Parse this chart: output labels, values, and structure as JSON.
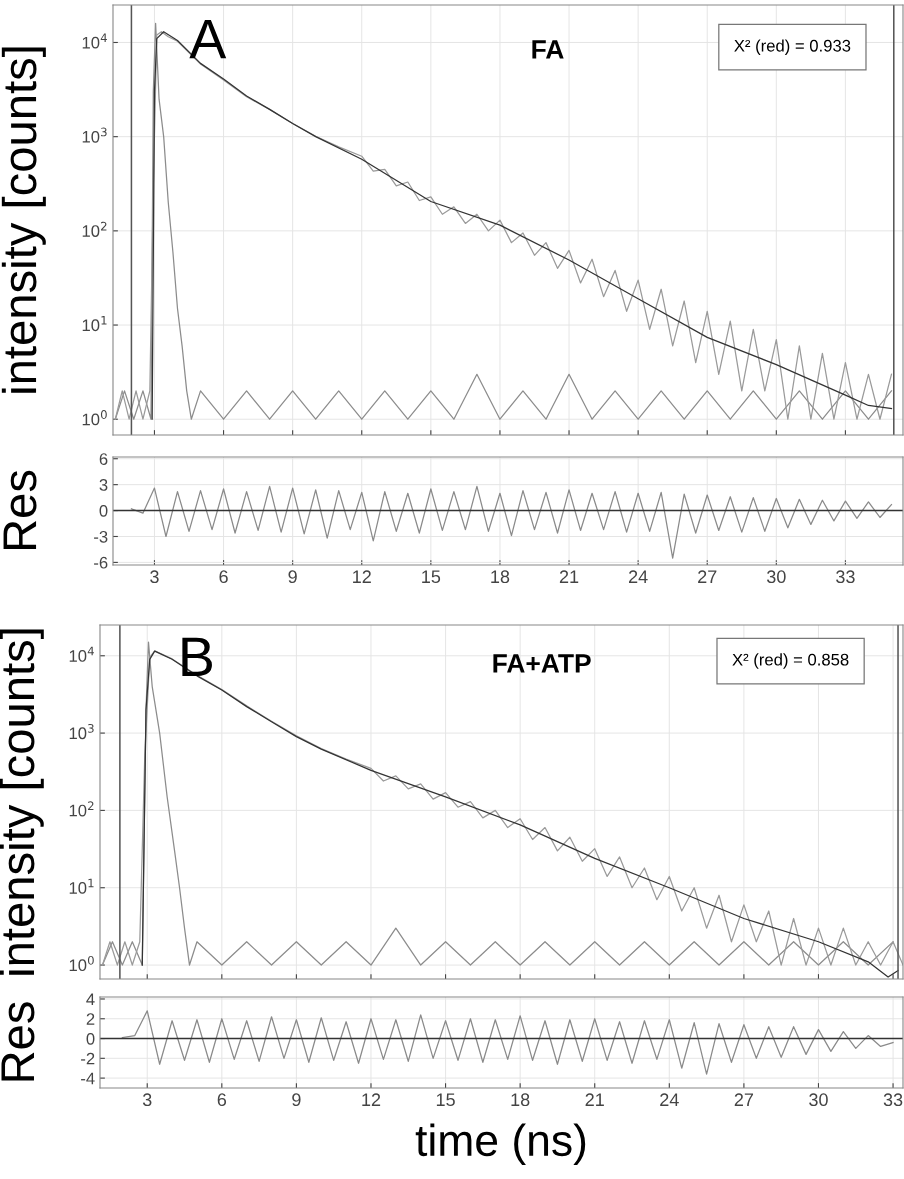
{
  "chart_data": [
    {
      "type": "line",
      "ylabel": "intensity [counts]",
      "annotations": [
        "A",
        "FA",
        "X² (red) = 0.933"
      ],
      "log": true,
      "grid": true,
      "tick_labels": "y",
      "xlim": [
        1.2,
        35.5
      ],
      "xticks": [
        3,
        6,
        9,
        12,
        15,
        18,
        21,
        24,
        27,
        30,
        33
      ],
      "ylim": [
        0.68,
        25000
      ],
      "yticks": [
        {
          "value": 1,
          "label": "10$^{0}$"
        },
        {
          "value": 10,
          "label": "10$^{1}$"
        },
        {
          "value": 100,
          "label": "10$^{2}$"
        },
        {
          "value": 1000,
          "label": "10$^{3}$"
        },
        {
          "value": 10000,
          "label": "10$^{4}$"
        }
      ],
      "ref_lines": [
        {
          "axis": "x",
          "value": 2.0,
          "color": "#555555"
        },
        {
          "axis": "x",
          "value": 35.1,
          "color": "#555555"
        }
      ],
      "series": [
        {
          "color": "#8c8c8c",
          "x": [
            1.3,
            1.7,
            2.1,
            2.5,
            2.85,
            2.95,
            3.05,
            3.2,
            3.4,
            3.6,
            3.8,
            4.0,
            4.2,
            4.4,
            4.6,
            5,
            6,
            7,
            8,
            9,
            10,
            11,
            12,
            13,
            14,
            15,
            16,
            17,
            18,
            19,
            20,
            21,
            22,
            23,
            24,
            25,
            26,
            27,
            28,
            29,
            30,
            31,
            32,
            33,
            34,
            35
          ],
          "values": [
            1,
            2,
            1,
            2,
            1,
            3000,
            16000,
            2500,
            1000,
            200,
            60,
            15,
            6,
            2,
            1,
            2,
            1,
            2,
            1,
            2,
            1,
            2,
            1,
            2,
            1,
            2,
            1,
            3,
            1,
            2,
            1,
            3,
            1,
            2,
            1,
            2,
            1,
            2,
            1,
            2,
            1,
            2,
            1,
            2,
            1,
            2
          ]
        },
        {
          "color": "#9a9a9a",
          "x": [
            1.3,
            1.6,
            1.9,
            2.2,
            2.5,
            2.8,
            2.95,
            3.1,
            3.3,
            3.6,
            4,
            5,
            6,
            7,
            8,
            9,
            10,
            11,
            12,
            12.5,
            13,
            13.5,
            14,
            14.5,
            15,
            15.5,
            16,
            16.5,
            17,
            17.5,
            18,
            18.5,
            19,
            19.5,
            20,
            20.5,
            21,
            21.5,
            22,
            22.5,
            23,
            23.5,
            24,
            24.5,
            25,
            25.5,
            26,
            26.5,
            27,
            27.5,
            28,
            28.5,
            29,
            29.5,
            30,
            30.5,
            31,
            31.5,
            32,
            32.5,
            33,
            33.5,
            34,
            34.5,
            35
          ],
          "values": [
            1,
            2,
            1,
            2,
            1,
            2,
            300,
            12000,
            13000,
            11500,
            10300,
            5900,
            4000,
            2650,
            1950,
            1380,
            1010,
            780,
            620,
            430,
            450,
            300,
            330,
            210,
            230,
            150,
            180,
            120,
            150,
            100,
            130,
            75,
            95,
            55,
            75,
            40,
            62,
            28,
            50,
            20,
            38,
            14,
            30,
            9,
            24,
            6,
            18,
            4,
            14,
            3,
            11,
            2,
            9,
            2,
            7,
            1,
            6,
            1,
            5,
            1,
            4,
            1,
            3,
            1,
            3
          ]
        },
        {
          "color": "#333333",
          "x": [
            2.9,
            3.0,
            3.1,
            3.4,
            4,
            5,
            6,
            7,
            8,
            9,
            10,
            12,
            15,
            18,
            21,
            24,
            27,
            30,
            33,
            34,
            35
          ],
          "values": [
            1,
            3000,
            11000,
            13000,
            10500,
            6000,
            4100,
            2700,
            1950,
            1380,
            1000,
            575,
            205,
            115,
            49,
            19,
            7.4,
            3.8,
            1.8,
            1.4,
            1.3
          ]
        }
      ]
    },
    {
      "type": "line",
      "ylabel": "Res",
      "grid": true,
      "xlim": [
        1.2,
        35.5
      ],
      "xticks": [
        3,
        6,
        9,
        12,
        15,
        18,
        21,
        24,
        27,
        30,
        33
      ],
      "ylim": [
        -6.3,
        6.2
      ],
      "yticks": [
        -6,
        -3,
        0,
        3,
        6
      ],
      "ref_lines": [
        {
          "axis": "y",
          "value": 0,
          "color": "#333333"
        }
      ],
      "series": [
        {
          "color": "#8a8a8a",
          "x": [
            2.0,
            2.5,
            3.0,
            3.5,
            4.0,
            4.5,
            5.0,
            5.5,
            6.0,
            6.5,
            7.0,
            7.5,
            8.0,
            8.5,
            9.0,
            9.5,
            10.0,
            10.5,
            11.0,
            11.5,
            12.0,
            12.5,
            13.0,
            13.5,
            14.0,
            14.5,
            15.0,
            15.5,
            16.0,
            16.5,
            17.0,
            17.5,
            18.0,
            18.5,
            19.0,
            19.5,
            20.0,
            20.5,
            21.0,
            21.5,
            22.0,
            22.5,
            23.0,
            23.5,
            24.0,
            24.5,
            25.0,
            25.5,
            26.0,
            26.5,
            27.0,
            27.5,
            28.0,
            28.5,
            29.0,
            29.5,
            30.0,
            30.5,
            31.0,
            31.5,
            32.0,
            32.5,
            33.0,
            33.5,
            34.0,
            34.5,
            35.0
          ],
          "values": [
            0.2,
            -0.3,
            2.6,
            -3.0,
            2.2,
            -2.4,
            2.3,
            -2.2,
            2.5,
            -2.6,
            2.2,
            -2.3,
            2.8,
            -2.5,
            2.6,
            -2.7,
            2.4,
            -3.2,
            2.3,
            -2.2,
            2.1,
            -3.5,
            2.2,
            -2.4,
            2.0,
            -2.6,
            2.5,
            -2.3,
            2.2,
            -2.2,
            2.8,
            -2.4,
            2.0,
            -2.9,
            2.3,
            -2.2,
            2.1,
            -2.6,
            2.4,
            -2.3,
            2.0,
            -2.2,
            2.2,
            -2.5,
            2.0,
            -2.4,
            2.1,
            -5.5,
            1.9,
            -2.6,
            1.8,
            -2.3,
            1.6,
            -2.5,
            1.5,
            -2.4,
            1.4,
            -2.0,
            1.3,
            -1.6,
            1.2,
            -1.2,
            1.1,
            -0.9,
            1.0,
            -0.8,
            0.7
          ]
        }
      ]
    },
    {
      "type": "line",
      "ylabel": "intensity [counts]",
      "annotations": [
        "B",
        "FA+ATP",
        "X² (red) = 0.858"
      ],
      "log": true,
      "grid": true,
      "tick_labels": "y",
      "xlim": [
        1.1,
        33.4
      ],
      "xticks": [
        3,
        6,
        9,
        12,
        15,
        18,
        21,
        24,
        27,
        30,
        33
      ],
      "ylim": [
        0.66,
        25000
      ],
      "yticks": [
        {
          "value": 1,
          "label": "10$^{0}$"
        },
        {
          "value": 10,
          "label": "10$^{1}$"
        },
        {
          "value": 100,
          "label": "10$^{2}$"
        },
        {
          "value": 1000,
          "label": "10$^{3}$"
        },
        {
          "value": 10000,
          "label": "10$^{4}$"
        }
      ],
      "ref_lines": [
        {
          "axis": "x",
          "value": 1.9,
          "color": "#555555"
        },
        {
          "axis": "x",
          "value": 33.2,
          "color": "#555555"
        }
      ],
      "series": [
        {
          "color": "#8c8c8c",
          "x": [
            1.2,
            1.6,
            2.0,
            2.4,
            2.8,
            2.95,
            3.05,
            3.2,
            3.5,
            3.8,
            4.1,
            4.3,
            4.5,
            4.7,
            5,
            6,
            7,
            8,
            9,
            10,
            11,
            12,
            13,
            14,
            15,
            16,
            17,
            18,
            19,
            20,
            21,
            22,
            23,
            24,
            25,
            26,
            27,
            28,
            29,
            30,
            31,
            32,
            33
          ],
          "values": [
            1,
            2,
            1,
            2,
            1,
            2000,
            15000,
            4000,
            1000,
            150,
            30,
            10,
            3,
            1,
            2,
            1,
            2,
            1,
            2,
            1,
            2,
            1,
            3,
            1,
            2,
            1,
            2,
            1,
            2,
            1,
            2,
            1,
            2,
            1,
            2,
            1,
            2,
            1,
            2,
            1,
            2,
            1,
            2
          ]
        },
        {
          "color": "#9a9a9a",
          "x": [
            1.2,
            1.5,
            1.8,
            2.1,
            2.4,
            2.7,
            2.9,
            3.1,
            3.3,
            4,
            5,
            6,
            7,
            8,
            9,
            10,
            11,
            12,
            12.5,
            13,
            13.5,
            14,
            14.5,
            15,
            15.5,
            16,
            16.5,
            17,
            17.5,
            18,
            18.5,
            19,
            19.5,
            20,
            20.5,
            21,
            21.5,
            22,
            22.5,
            23,
            23.5,
            24,
            24.5,
            25,
            25.5,
            26,
            26.5,
            27,
            27.5,
            28,
            28.5,
            29,
            29.5,
            30,
            30.5,
            31,
            31.5,
            32,
            32.5,
            33,
            33.4
          ],
          "values": [
            1,
            2,
            1,
            2,
            1,
            2,
            500,
            9500,
            11600,
            9100,
            5600,
            3650,
            2250,
            1420,
            920,
            630,
            460,
            350,
            240,
            280,
            190,
            220,
            140,
            170,
            110,
            130,
            80,
            100,
            60,
            78,
            42,
            60,
            30,
            45,
            22,
            32,
            14,
            25,
            10,
            18,
            7,
            14,
            5,
            10,
            3,
            8,
            2,
            6,
            2,
            5,
            1,
            4,
            1,
            3,
            1,
            3,
            1,
            2,
            1,
            2,
            1
          ]
        },
        {
          "color": "#333333",
          "x": [
            2.8,
            2.95,
            3.1,
            3.3,
            4,
            5,
            6,
            7,
            8,
            9,
            10,
            12,
            15,
            18,
            21,
            24,
            27,
            30,
            32,
            32.8,
            33.2
          ],
          "values": [
            1,
            2000,
            9000,
            11500,
            9000,
            5500,
            3600,
            2200,
            1400,
            900,
            620,
            330,
            150,
            65,
            24,
            10,
            4,
            2,
            1.1,
            0.7,
            0.85
          ]
        }
      ]
    },
    {
      "type": "line",
      "ylabel": "Res",
      "xlabel": "time (ns)",
      "grid": true,
      "xlim": [
        1.1,
        33.4
      ],
      "xticks": [
        3,
        6,
        9,
        12,
        15,
        18,
        21,
        24,
        27,
        30,
        33
      ],
      "ylim": [
        -5.0,
        4.2
      ],
      "yticks": [
        -4,
        -2,
        0,
        2,
        4
      ],
      "ref_lines": [
        {
          "axis": "y",
          "value": 0,
          "color": "#333333"
        }
      ],
      "series": [
        {
          "color": "#8a8a8a",
          "x": [
            2.0,
            2.5,
            3.0,
            3.5,
            4.0,
            4.5,
            5.0,
            5.5,
            6.0,
            6.5,
            7.0,
            7.5,
            8.0,
            8.5,
            9.0,
            9.5,
            10.0,
            10.5,
            11.0,
            11.5,
            12.0,
            12.5,
            13.0,
            13.5,
            14.0,
            14.5,
            15.0,
            15.5,
            16.0,
            16.5,
            17.0,
            17.5,
            18.0,
            18.5,
            19.0,
            19.5,
            20.0,
            20.5,
            21.0,
            21.5,
            22.0,
            22.5,
            23.0,
            23.5,
            24.0,
            24.5,
            25.0,
            25.5,
            26.0,
            26.5,
            27.0,
            27.5,
            28.0,
            28.5,
            29.0,
            29.5,
            30.0,
            30.5,
            31.0,
            31.5,
            32.0,
            32.5,
            33.0
          ],
          "values": [
            0.1,
            0.3,
            2.8,
            -2.6,
            1.8,
            -2.2,
            1.9,
            -2.4,
            2.0,
            -2.1,
            1.8,
            -2.3,
            2.2,
            -2.0,
            1.9,
            -2.4,
            2.1,
            -2.2,
            1.7,
            -2.5,
            2.0,
            -2.1,
            1.9,
            -2.3,
            2.4,
            -2.0,
            1.8,
            -2.2,
            2.0,
            -2.4,
            1.9,
            -2.1,
            2.3,
            -2.2,
            1.8,
            -2.6,
            1.9,
            -2.3,
            2.0,
            -2.2,
            1.7,
            -2.5,
            1.8,
            -2.1,
            1.9,
            -3.0,
            1.6,
            -3.6,
            1.5,
            -2.4,
            1.4,
            -2.0,
            1.2,
            -1.9,
            1.2,
            -1.6,
            0.9,
            -1.3,
            0.7,
            -1.0,
            0.3,
            -0.8,
            -0.4
          ]
        }
      ]
    }
  ]
}
